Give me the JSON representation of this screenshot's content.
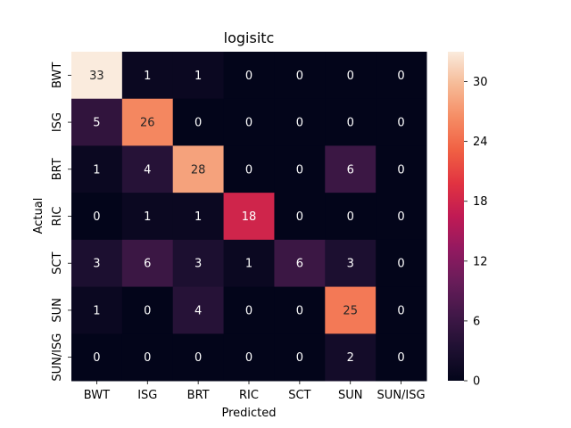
{
  "chart_data": {
    "type": "heatmap",
    "title": "logisitc",
    "xlabel": "Predicted",
    "ylabel": "Actual",
    "x_categories": [
      "BWT",
      "ISG",
      "BRT",
      "RIC",
      "SCT",
      "SUN",
      "SUN/ISG"
    ],
    "y_categories": [
      "BWT",
      "ISG",
      "BRT",
      "RIC",
      "SCT",
      "SUN",
      "SUN/ISG"
    ],
    "values": [
      [
        33,
        1,
        1,
        0,
        0,
        0,
        0
      ],
      [
        5,
        26,
        0,
        0,
        0,
        0,
        0
      ],
      [
        1,
        4,
        28,
        0,
        0,
        6,
        0
      ],
      [
        0,
        1,
        1,
        18,
        0,
        0,
        0
      ],
      [
        3,
        6,
        3,
        1,
        6,
        3,
        0
      ],
      [
        1,
        0,
        4,
        0,
        0,
        25,
        0
      ],
      [
        0,
        0,
        0,
        0,
        0,
        2,
        0
      ]
    ],
    "value_range": [
      0,
      33
    ],
    "colorbar": {
      "ticks": [
        0,
        6,
        12,
        18,
        24,
        30
      ],
      "labels": [
        "0",
        "6",
        "12",
        "18",
        "24",
        "30"
      ]
    },
    "colormap": "rocket"
  }
}
